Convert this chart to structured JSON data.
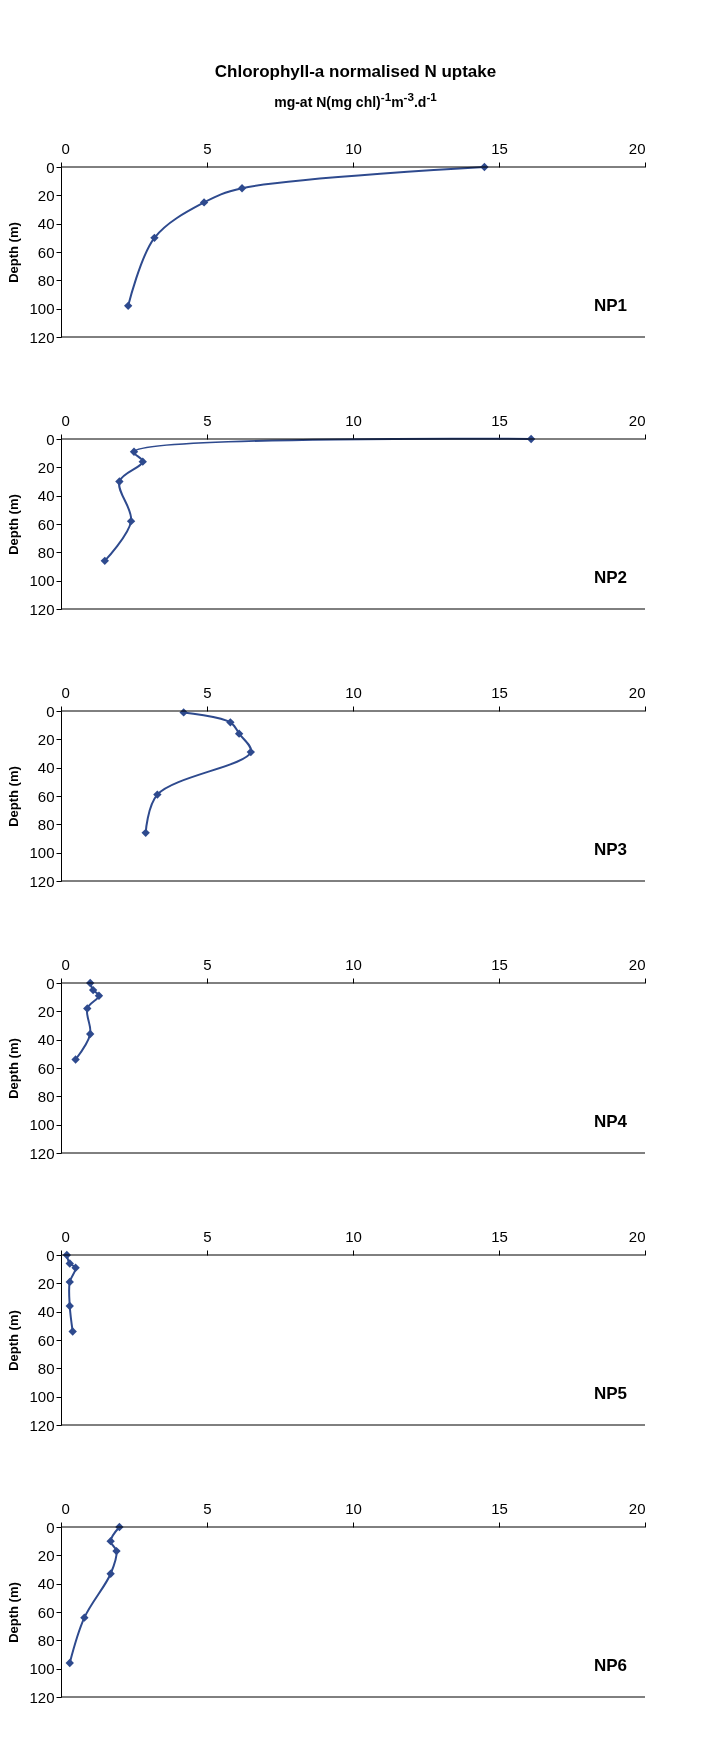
{
  "chart_data": [
    {
      "type": "line",
      "title": "Chlorophyll-a normalised N uptake",
      "subtitle": "mg-at N(mg chl)$^{-1}$m$^{-3}$.d$^{-1}$",
      "ylabel": "Depth (m)",
      "annotations": [
        "NP1"
      ],
      "xlim": [
        0,
        20
      ],
      "xticks": [
        0,
        5,
        10,
        15,
        20
      ],
      "ylim": [
        120,
        0
      ],
      "yticks": [
        0,
        20,
        40,
        60,
        80,
        100,
        120
      ],
      "grid": false,
      "marker": "diamond",
      "line_style": "solid",
      "series": [
        {
          "color": "#2e4a8e",
          "x": [
            14.5,
            6.2,
            4.9,
            3.2,
            2.3
          ],
          "values": [
            0,
            15,
            25,
            50,
            98
          ]
        }
      ]
    },
    {
      "type": "line",
      "ylabel": "Depth (m)",
      "annotations": [
        "NP2"
      ],
      "xlim": [
        0,
        20
      ],
      "xticks": [
        0,
        5,
        10,
        15,
        20
      ],
      "ylim": [
        120,
        0
      ],
      "yticks": [
        0,
        20,
        40,
        60,
        80,
        100,
        120
      ],
      "grid": false,
      "marker": "diamond",
      "line_style": "solid",
      "series": [
        {
          "color": "#2e4a8e",
          "x": [
            16.1,
            2.5,
            2.8,
            2.0,
            2.4,
            1.5
          ],
          "values": [
            0,
            9,
            16,
            30,
            58,
            86
          ]
        }
      ]
    },
    {
      "type": "line",
      "ylabel": "Depth (m)",
      "annotations": [
        "NP3"
      ],
      "xlim": [
        0,
        20
      ],
      "xticks": [
        0,
        5,
        10,
        15,
        20
      ],
      "ylim": [
        120,
        0
      ],
      "yticks": [
        0,
        20,
        40,
        60,
        80,
        100,
        120
      ],
      "grid": false,
      "marker": "diamond",
      "line_style": "solid",
      "series": [
        {
          "color": "#2e4a8e",
          "x": [
            4.2,
            5.8,
            6.1,
            6.5,
            3.3,
            2.9
          ],
          "values": [
            1,
            8,
            16,
            29,
            59,
            86
          ]
        }
      ]
    },
    {
      "type": "line",
      "ylabel": "Depth (m)",
      "annotations": [
        "NP4"
      ],
      "xlim": [
        0,
        20
      ],
      "xticks": [
        0,
        5,
        10,
        15,
        20
      ],
      "ylim": [
        120,
        0
      ],
      "yticks": [
        0,
        20,
        40,
        60,
        80,
        100,
        120
      ],
      "grid": false,
      "marker": "diamond",
      "line_style": "solid",
      "series": [
        {
          "color": "#2e4a8e",
          "x": [
            1.0,
            1.1,
            1.3,
            0.9,
            1.0,
            0.5
          ],
          "values": [
            0,
            5,
            9,
            18,
            36,
            54
          ]
        }
      ]
    },
    {
      "type": "line",
      "ylabel": "Depth (m)",
      "annotations": [
        "NP5"
      ],
      "xlim": [
        0,
        20
      ],
      "xticks": [
        0,
        5,
        10,
        15,
        20
      ],
      "ylim": [
        120,
        0
      ],
      "yticks": [
        0,
        20,
        40,
        60,
        80,
        100,
        120
      ],
      "grid": false,
      "marker": "diamond",
      "line_style": "solid",
      "series": [
        {
          "color": "#2e4a8e",
          "x": [
            0.2,
            0.3,
            0.5,
            0.3,
            0.3,
            0.4
          ],
          "values": [
            0,
            6,
            9,
            19,
            36,
            54
          ]
        }
      ]
    },
    {
      "type": "line",
      "ylabel": "Depth (m)",
      "annotations": [
        "NP6"
      ],
      "xlim": [
        0,
        20
      ],
      "xticks": [
        0,
        5,
        10,
        15,
        20
      ],
      "ylim": [
        120,
        0
      ],
      "yticks": [
        0,
        20,
        40,
        60,
        80,
        100,
        120
      ],
      "grid": false,
      "marker": "diamond",
      "line_style": "solid",
      "series": [
        {
          "color": "#2e4a8e",
          "x": [
            2.0,
            1.7,
            1.9,
            1.7,
            0.8,
            0.3
          ],
          "values": [
            0,
            10,
            17,
            33,
            64,
            96
          ]
        }
      ]
    }
  ]
}
